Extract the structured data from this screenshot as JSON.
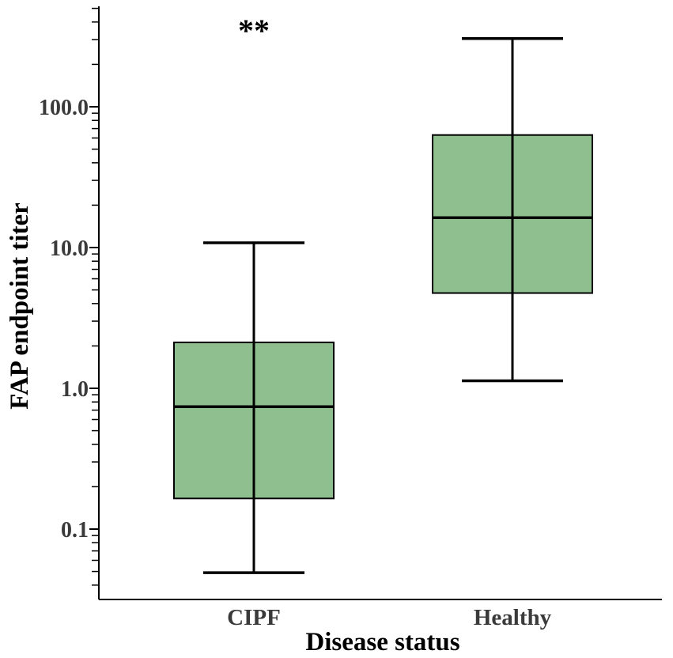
{
  "chart_data": {
    "type": "boxplot",
    "title": "",
    "xlabel": "Disease status",
    "ylabel": "FAP endpoint titer",
    "yscale": "log",
    "ylim": [
      0.036,
      540
    ],
    "yticks": [
      {
        "value": 0.1,
        "label": "0.1"
      },
      {
        "value": 1,
        "label": "1.0"
      },
      {
        "value": 10,
        "label": "10.0"
      },
      {
        "value": 100,
        "label": "100.0"
      }
    ],
    "categories": [
      "CIPF",
      "Healthy"
    ],
    "series": [
      {
        "name": "CIPF",
        "whisker_low": 0.049,
        "q1": 0.165,
        "median": 0.74,
        "q3": 2.12,
        "whisker_high": 10.8
      },
      {
        "name": "Healthy",
        "whisker_low": 1.13,
        "q1": 4.75,
        "median": 16.3,
        "q3": 63,
        "whisker_high": 305
      }
    ],
    "annotations": [
      {
        "text": "**",
        "category": "CIPF"
      }
    ],
    "colors": {
      "box_fill": "#8fbf8f",
      "box_stroke": "#000000",
      "axis": "#000000",
      "text": "#3a3a3a"
    }
  }
}
